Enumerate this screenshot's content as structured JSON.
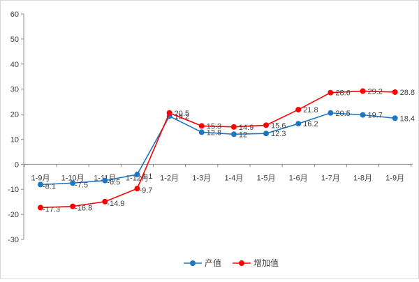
{
  "chart_data": {
    "type": "line",
    "title": "",
    "xlabel": "",
    "ylabel": "",
    "ylim": [
      -30,
      60
    ],
    "ytick_labels": [
      "60",
      "50",
      "40",
      "30",
      "20",
      "10",
      "0",
      "-10",
      "-20",
      "-30"
    ],
    "ytick_values": [
      60,
      50,
      40,
      30,
      20,
      10,
      0,
      -10,
      -20,
      -30
    ],
    "categories": [
      "1-9月",
      "1-10月",
      "1-11月",
      "1-12月",
      "1-2月",
      "1-3月",
      "1-4月",
      "1-5月",
      "1-6月",
      "1-7月",
      "1-8月",
      "1-9月"
    ],
    "grid": false,
    "legend_position": "bottom",
    "series": [
      {
        "name": "产值",
        "color": "#1f77c4",
        "values": [
          -8.1,
          -7.5,
          -6.5,
          -4.1,
          19.2,
          12.8,
          12,
          12.3,
          16.2,
          20.5,
          19.7,
          18.4
        ],
        "labels": [
          "-8.1",
          "-7.5",
          "-6.5",
          "-4.1",
          "19.2",
          "12.8",
          "12",
          "12.3",
          "16.2",
          "20.5",
          "19.7",
          "18.4"
        ]
      },
      {
        "name": "增加值",
        "color": "#ff0000",
        "values": [
          -17.3,
          -16.8,
          -14.9,
          -9.7,
          20.5,
          15.3,
          14.9,
          15.6,
          21.8,
          28.6,
          29.2,
          28.8
        ],
        "labels": [
          "-17.3",
          "-16.8",
          "-14.9",
          "-9.7",
          "20.5",
          "15.3",
          "14.9",
          "15.6",
          "21.8",
          "28.6",
          "29.2",
          "28.8"
        ]
      }
    ]
  }
}
